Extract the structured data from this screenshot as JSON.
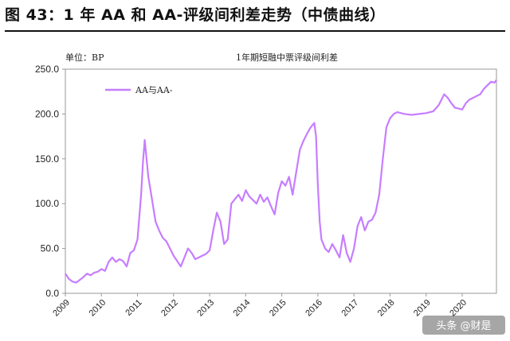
{
  "header": {
    "title": "图 43：1 年 AA 和 AA-评级间利差走势（中债曲线）"
  },
  "chart_data": {
    "type": "line",
    "title": "1年期短融中票评级间利差",
    "unit_label": "单位：BP",
    "ylim": [
      0,
      250
    ],
    "yticks": [
      "250.0",
      "200.0",
      "150.0",
      "100.0",
      "50.0",
      "0.0"
    ],
    "ytick_values": [
      250,
      200,
      150,
      100,
      50,
      0
    ],
    "xlim": [
      2009.0,
      2020.95
    ],
    "xticks": [
      "2009",
      "2010",
      "2011",
      "2012",
      "2013",
      "2014",
      "2015",
      "2016",
      "2017",
      "2018",
      "2019",
      "2020"
    ],
    "xtick_values": [
      2009,
      2010,
      2011,
      2012,
      2013,
      2014,
      2015,
      2016,
      2017,
      2018,
      2019,
      2020
    ],
    "grid": false,
    "legend_position": "top-left",
    "series": [
      {
        "name": "AA与AA-",
        "color": "#c77dff",
        "points": [
          [
            2009.0,
            22
          ],
          [
            2009.1,
            16
          ],
          [
            2009.2,
            13
          ],
          [
            2009.3,
            12
          ],
          [
            2009.4,
            15
          ],
          [
            2009.5,
            18
          ],
          [
            2009.6,
            22
          ],
          [
            2009.7,
            20
          ],
          [
            2009.8,
            23
          ],
          [
            2009.9,
            24
          ],
          [
            2010.0,
            27
          ],
          [
            2010.1,
            25
          ],
          [
            2010.2,
            35
          ],
          [
            2010.3,
            40
          ],
          [
            2010.4,
            35
          ],
          [
            2010.5,
            38
          ],
          [
            2010.6,
            36
          ],
          [
            2010.7,
            30
          ],
          [
            2010.8,
            45
          ],
          [
            2010.9,
            48
          ],
          [
            2011.0,
            60
          ],
          [
            2011.05,
            85
          ],
          [
            2011.1,
            110
          ],
          [
            2011.15,
            145
          ],
          [
            2011.2,
            171
          ],
          [
            2011.25,
            150
          ],
          [
            2011.3,
            130
          ],
          [
            2011.4,
            105
          ],
          [
            2011.5,
            80
          ],
          [
            2011.6,
            70
          ],
          [
            2011.7,
            62
          ],
          [
            2011.8,
            58
          ],
          [
            2011.9,
            50
          ],
          [
            2012.0,
            42
          ],
          [
            2012.1,
            36
          ],
          [
            2012.2,
            30
          ],
          [
            2012.3,
            40
          ],
          [
            2012.4,
            50
          ],
          [
            2012.5,
            45
          ],
          [
            2012.6,
            38
          ],
          [
            2012.7,
            40
          ],
          [
            2012.8,
            42
          ],
          [
            2012.9,
            44
          ],
          [
            2013.0,
            48
          ],
          [
            2013.1,
            70
          ],
          [
            2013.2,
            90
          ],
          [
            2013.3,
            80
          ],
          [
            2013.4,
            55
          ],
          [
            2013.5,
            60
          ],
          [
            2013.6,
            100
          ],
          [
            2013.7,
            105
          ],
          [
            2013.8,
            110
          ],
          [
            2013.9,
            103
          ],
          [
            2014.0,
            115
          ],
          [
            2014.1,
            108
          ],
          [
            2014.2,
            104
          ],
          [
            2014.3,
            100
          ],
          [
            2014.4,
            110
          ],
          [
            2014.5,
            102
          ],
          [
            2014.6,
            107
          ],
          [
            2014.7,
            97
          ],
          [
            2014.8,
            88
          ],
          [
            2014.9,
            112
          ],
          [
            2015.0,
            125
          ],
          [
            2015.1,
            120
          ],
          [
            2015.2,
            130
          ],
          [
            2015.3,
            110
          ],
          [
            2015.4,
            135
          ],
          [
            2015.5,
            160
          ],
          [
            2015.6,
            170
          ],
          [
            2015.7,
            178
          ],
          [
            2015.8,
            185
          ],
          [
            2015.9,
            190
          ],
          [
            2015.95,
            175
          ],
          [
            2016.0,
            120
          ],
          [
            2016.05,
            80
          ],
          [
            2016.1,
            60
          ],
          [
            2016.2,
            50
          ],
          [
            2016.3,
            46
          ],
          [
            2016.4,
            55
          ],
          [
            2016.5,
            48
          ],
          [
            2016.6,
            40
          ],
          [
            2016.7,
            65
          ],
          [
            2016.8,
            45
          ],
          [
            2016.9,
            35
          ],
          [
            2017.0,
            50
          ],
          [
            2017.1,
            75
          ],
          [
            2017.2,
            85
          ],
          [
            2017.3,
            70
          ],
          [
            2017.4,
            80
          ],
          [
            2017.5,
            82
          ],
          [
            2017.6,
            90
          ],
          [
            2017.7,
            110
          ],
          [
            2017.8,
            150
          ],
          [
            2017.9,
            185
          ],
          [
            2018.0,
            195
          ],
          [
            2018.1,
            200
          ],
          [
            2018.2,
            202
          ],
          [
            2018.4,
            200
          ],
          [
            2018.6,
            199
          ],
          [
            2018.8,
            200
          ],
          [
            2019.0,
            201
          ],
          [
            2019.2,
            203
          ],
          [
            2019.35,
            210
          ],
          [
            2019.5,
            222
          ],
          [
            2019.6,
            218
          ],
          [
            2019.7,
            212
          ],
          [
            2019.8,
            207
          ],
          [
            2019.9,
            206
          ],
          [
            2020.0,
            205
          ],
          [
            2020.1,
            212
          ],
          [
            2020.2,
            216
          ],
          [
            2020.3,
            218
          ],
          [
            2020.4,
            220
          ],
          [
            2020.5,
            222
          ],
          [
            2020.6,
            228
          ],
          [
            2020.7,
            232
          ],
          [
            2020.8,
            236
          ],
          [
            2020.9,
            235
          ],
          [
            2020.95,
            238
          ]
        ]
      }
    ]
  },
  "watermark": {
    "text": "头条 @财是"
  }
}
